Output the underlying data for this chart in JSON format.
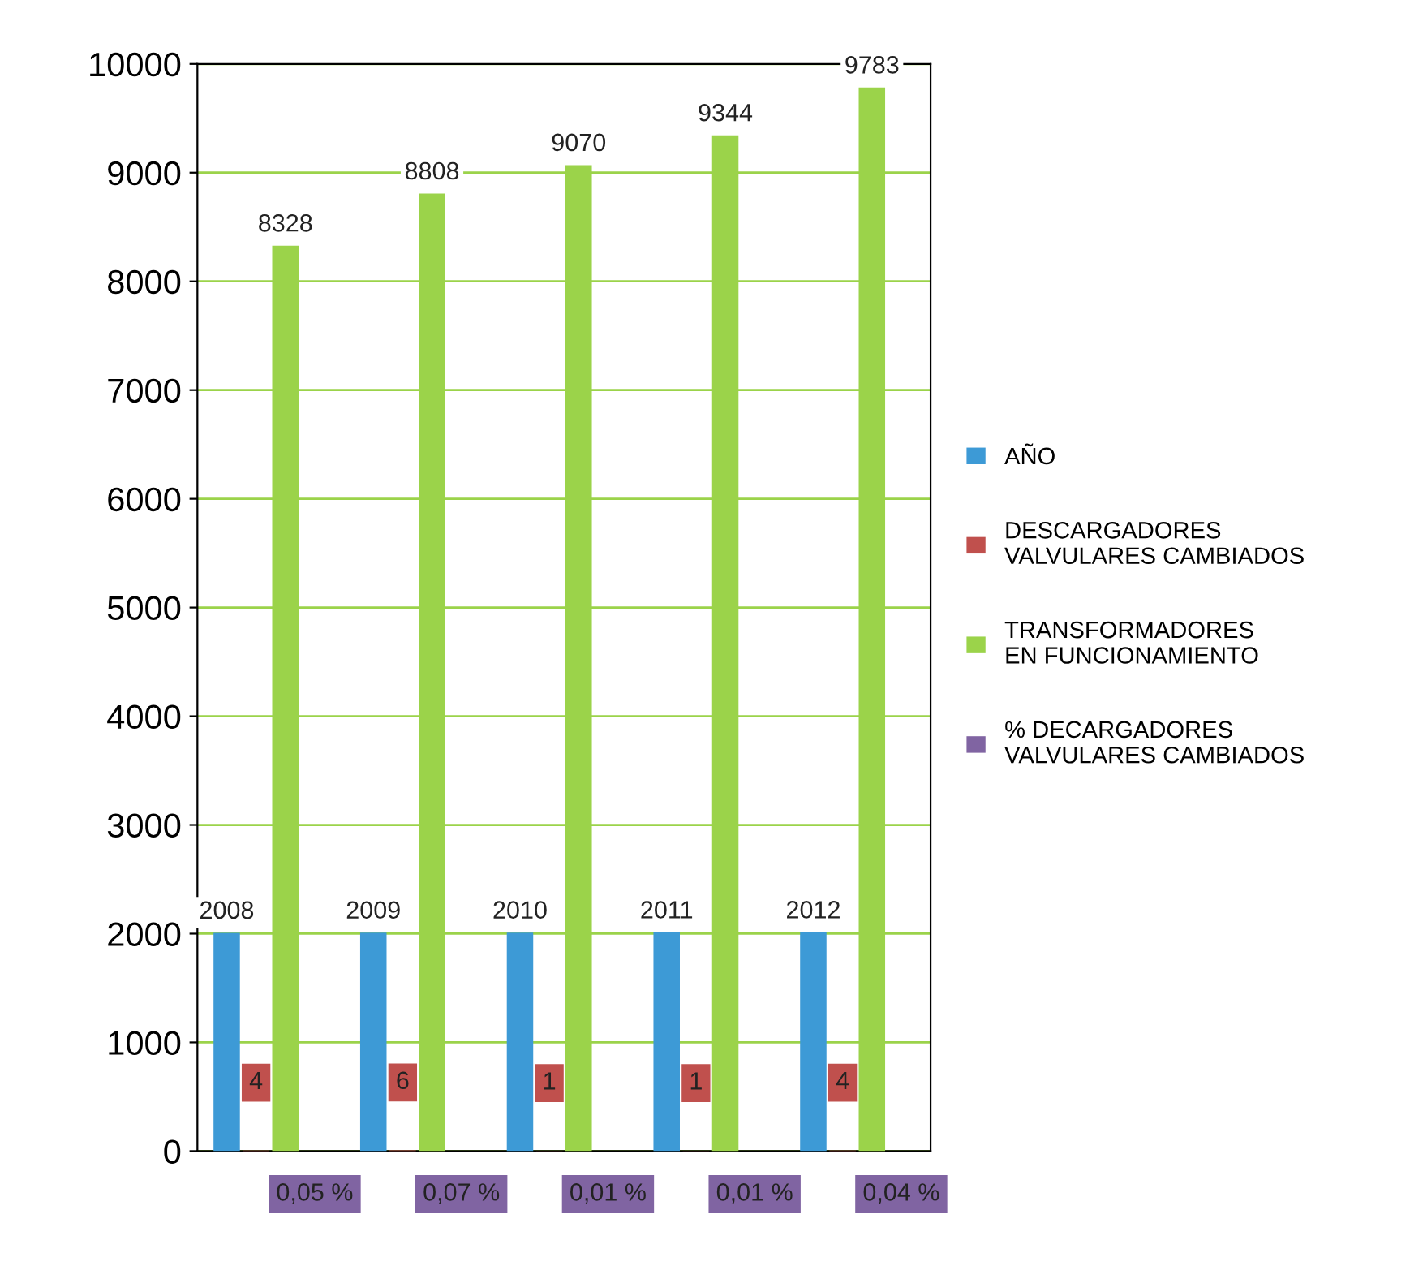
{
  "chart_data": {
    "type": "bar",
    "categories": [
      null,
      null,
      null,
      null,
      null
    ],
    "series": [
      {
        "name": "AÑO",
        "color": "#3d9ad6",
        "values": [
          2008,
          2009,
          2010,
          2011,
          2012
        ],
        "value_labels": [
          "2008",
          "2009",
          "2010",
          "2011",
          "2012"
        ]
      },
      {
        "name": "DESCARGADORES VALVULARES CAMBIADOS",
        "color": "#c0504d",
        "values": [
          4,
          6,
          1,
          1,
          4
        ],
        "value_labels": [
          "4",
          "6",
          "1",
          "1",
          "4"
        ]
      },
      {
        "name": "TRANSFORMADORES EN FUNCIONAMIENTO",
        "color": "#9bd34a",
        "values": [
          8328,
          8808,
          9070,
          9344,
          9783
        ],
        "value_labels": [
          "8328",
          "8808",
          "9070",
          "9344",
          "9783"
        ]
      },
      {
        "name": "% DECARGADORES VALVULARES CAMBIADOS",
        "color": "#8064a2",
        "values": [
          0.05,
          0.07,
          0.01,
          0.01,
          0.04
        ],
        "value_labels": [
          "0,05 %",
          "0,07 %",
          "0,01 %",
          "0,01 %",
          "0,04 %"
        ]
      }
    ],
    "ylim": [
      0,
      10000
    ],
    "yticks": [
      0,
      1000,
      2000,
      3000,
      4000,
      5000,
      6000,
      7000,
      8000,
      9000,
      10000
    ],
    "grid": "y",
    "legend": "right"
  }
}
